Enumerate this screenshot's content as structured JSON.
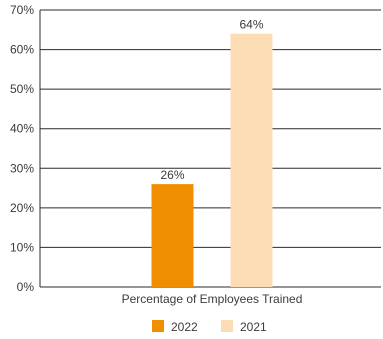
{
  "chart_data": {
    "type": "bar",
    "title": "",
    "xlabel": "",
    "ylabel": "",
    "categories": [
      "Percentage of Employees Trained"
    ],
    "series": [
      {
        "name": "2022",
        "values": [
          26
        ],
        "color": "#ef8f00",
        "label": "26%"
      },
      {
        "name": "2021",
        "values": [
          64
        ],
        "color": "#fcdcb5",
        "label": "64%"
      }
    ],
    "ylim": [
      0,
      70
    ],
    "yticks": [
      "0%",
      "10%",
      "20%",
      "30%",
      "40%",
      "50%",
      "60%",
      "70%"
    ],
    "grid": true,
    "legend_position": "bottom"
  }
}
